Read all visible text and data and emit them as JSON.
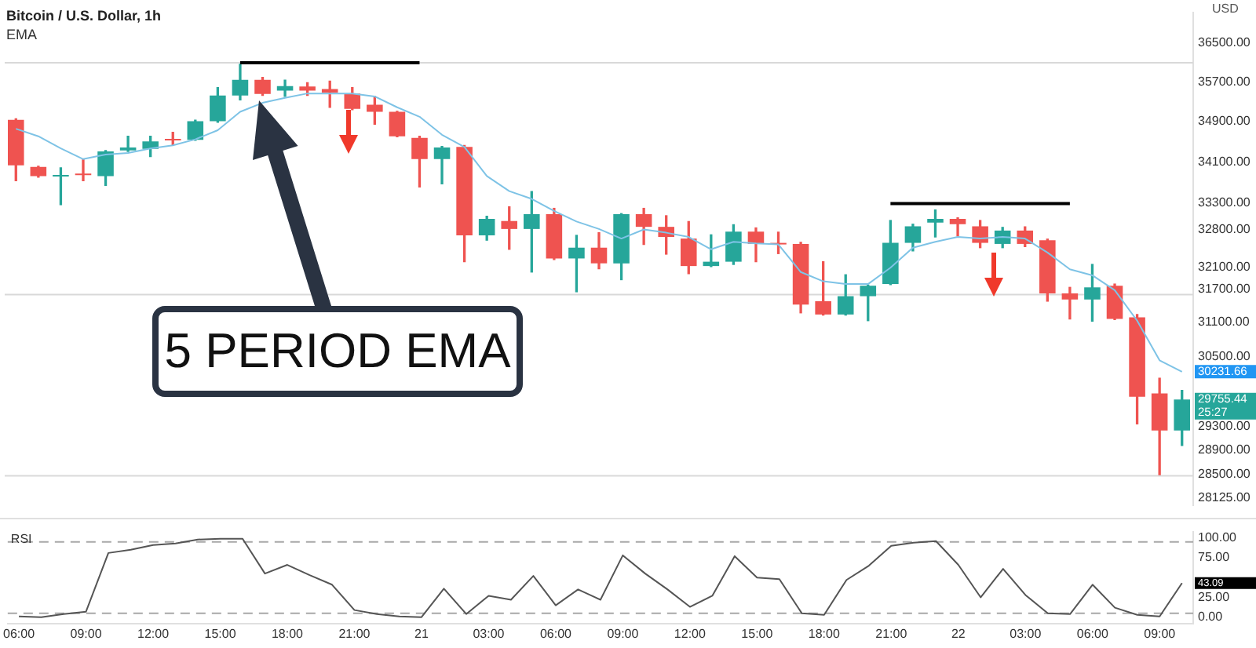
{
  "chart_data": [
    {
      "type": "candlestick",
      "title": "Bitcoin / U.S. Dollar, 1h",
      "log": true,
      "tick_labels": "y",
      "categories": [
        null,
        null,
        null,
        null,
        null,
        null,
        null,
        null,
        null,
        null,
        null,
        null,
        null,
        null,
        null,
        null,
        null,
        null,
        null,
        null,
        null,
        null,
        null,
        null,
        null,
        null,
        null,
        null,
        null,
        null,
        null,
        null,
        null,
        null,
        null,
        null,
        null,
        null,
        null,
        null,
        null,
        null,
        null,
        null,
        null,
        null,
        null,
        null,
        null,
        null,
        null,
        null,
        null
      ],
      "ohlc": [
        [
          34930,
          34950,
          33730,
          34030
        ],
        [
          34000,
          34010,
          33800,
          33820
        ],
        [
          33810,
          33980,
          33270,
          33830
        ],
        [
          33850,
          34150,
          33730,
          33840
        ],
        [
          33820,
          34320,
          33640,
          34300
        ],
        [
          34320,
          34600,
          34300,
          34380
        ],
        [
          34350,
          34600,
          34200,
          34500
        ],
        [
          34540,
          34680,
          34420,
          34520
        ],
        [
          34530,
          34920,
          34520,
          34900
        ],
        [
          34900,
          35580,
          34880,
          35420
        ],
        [
          35420,
          36060,
          35330,
          35740
        ],
        [
          35740,
          35790,
          35420,
          35450
        ],
        [
          35520,
          35730,
          35400,
          35610
        ],
        [
          35600,
          35680,
          35420,
          35520
        ],
        [
          35550,
          35710,
          35180,
          35480
        ],
        [
          35460,
          35580,
          35130,
          35150
        ],
        [
          35230,
          35400,
          34840,
          35090
        ],
        [
          35090,
          35100,
          34590,
          34600
        ],
        [
          34570,
          34600,
          33610,
          34150
        ],
        [
          34150,
          34400,
          33670,
          34380
        ],
        [
          34390,
          34420,
          32200,
          32690
        ],
        [
          32690,
          33050,
          32600,
          33000
        ],
        [
          32960,
          33230,
          32430,
          32810
        ],
        [
          32810,
          33520,
          32010,
          33090
        ],
        [
          33090,
          33200,
          32240,
          32260
        ],
        [
          32260,
          32690,
          31650,
          32460
        ],
        [
          32460,
          32740,
          32070,
          32170
        ],
        [
          32170,
          33100,
          31870,
          33090
        ],
        [
          33090,
          33200,
          32520,
          32850
        ],
        [
          32850,
          33060,
          32340,
          32660
        ],
        [
          32630,
          32950,
          31980,
          32120
        ],
        [
          32120,
          32700,
          32110,
          32200
        ],
        [
          32200,
          32890,
          32150,
          32760
        ],
        [
          32760,
          32830,
          32200,
          32530
        ],
        [
          32530,
          32750,
          32350,
          32520
        ],
        [
          32530,
          32560,
          31270,
          31420
        ],
        [
          31480,
          32200,
          31230,
          31240
        ],
        [
          31240,
          31960,
          31230,
          31570
        ],
        [
          31570,
          31770,
          31130,
          31760
        ],
        [
          31790,
          32970,
          31780,
          32550
        ],
        [
          32550,
          32900,
          32400,
          32860
        ],
        [
          32930,
          33170,
          32660,
          33000
        ],
        [
          33000,
          33020,
          32680,
          32900
        ],
        [
          32860,
          32970,
          32460,
          32550
        ],
        [
          32530,
          32840,
          32460,
          32780
        ],
        [
          32780,
          32850,
          32480,
          32530
        ],
        [
          32600,
          32620,
          31480,
          31620
        ],
        [
          31620,
          31730,
          31160,
          31510
        ],
        [
          31510,
          32150,
          31120,
          31730
        ],
        [
          31760,
          31790,
          31150,
          31160
        ],
        [
          31190,
          31240,
          29340,
          29800
        ],
        [
          29860,
          30120,
          28500,
          29230
        ],
        [
          29230,
          29910,
          28980,
          29755.44
        ]
      ],
      "colors": [
        "#ef5350",
        "#ef5350",
        "#26a69a",
        "#ef5350",
        "#26a69a",
        "#26a69a",
        "#26a69a",
        "#ef5350",
        "#26a69a",
        "#26a69a",
        "#26a69a",
        "#ef5350",
        "#26a69a",
        "#ef5350",
        "#ef5350",
        "#ef5350",
        "#ef5350",
        "#ef5350",
        "#ef5350",
        "#26a69a",
        "#ef5350",
        "#26a69a",
        "#ef5350",
        "#26a69a",
        "#ef5350",
        "#26a69a",
        "#ef5350",
        "#26a69a",
        "#ef5350",
        "#ef5350",
        "#ef5350",
        "#26a69a",
        "#26a69a",
        "#ef5350",
        "#ef5350",
        "#ef5350",
        "#ef5350",
        "#26a69a",
        "#26a69a",
        "#26a69a",
        "#26a69a",
        "#26a69a",
        "#ef5350",
        "#ef5350",
        "#26a69a",
        "#ef5350",
        "#ef5350",
        "#ef5350",
        "#26a69a",
        "#ef5350",
        "#ef5350",
        "#ef5350",
        "#26a69a"
      ],
      "series": [
        {
          "name": "EMA",
          "type": "line",
          "color": "#7ec3e6",
          "values": [
            34750,
            34600,
            34360,
            34150,
            34240,
            34270,
            34360,
            34420,
            34540,
            34720,
            35090,
            35270,
            35370,
            35460,
            35460,
            35460,
            35400,
            35180,
            34990,
            34630,
            34390,
            33820,
            33530,
            33380,
            33150,
            32950,
            32810,
            32630,
            32800,
            32740,
            32660,
            32430,
            32570,
            32540,
            32520,
            32010,
            31840,
            31790,
            31790,
            32090,
            32460,
            32570,
            32660,
            32630,
            32660,
            32630,
            32370,
            32060,
            31950,
            31680,
            31130,
            30430,
            30231.66
          ]
        },
        {
          "type": "line",
          "color": "#000000",
          "values": [
            null,
            null,
            null,
            null,
            null,
            null,
            null,
            null,
            null,
            null,
            36090,
            36090,
            36090,
            36090,
            36090,
            36090,
            36090,
            36090,
            36090,
            null,
            null,
            null,
            null,
            null,
            null,
            null,
            null,
            null,
            null,
            null,
            null,
            null,
            null,
            null,
            null,
            null,
            null,
            null,
            null,
            null,
            null,
            null,
            null,
            null,
            null,
            null,
            null,
            null,
            null,
            null,
            null,
            null,
            null
          ]
        },
        {
          "type": "line",
          "color": "#000000",
          "values": [
            null,
            null,
            null,
            null,
            null,
            null,
            null,
            null,
            null,
            null,
            null,
            null,
            null,
            null,
            null,
            null,
            null,
            null,
            null,
            null,
            null,
            null,
            null,
            null,
            null,
            null,
            null,
            null,
            null,
            null,
            null,
            null,
            null,
            null,
            null,
            null,
            null,
            null,
            null,
            33290,
            33290,
            33290,
            33290,
            33290,
            33290,
            33290,
            33290,
            33290,
            null,
            null,
            null,
            null,
            null
          ]
        }
      ],
      "ylim": [
        28000,
        37150
      ],
      "yticks": [
        {
          "value": 36500,
          "label": "36500.00"
        },
        {
          "value": 35700,
          "label": "35700.00"
        },
        {
          "value": 34900,
          "label": "34900.00"
        },
        {
          "value": 34100,
          "label": "34100.00"
        },
        {
          "value": 33300,
          "label": "33300.00"
        },
        {
          "value": 32800,
          "label": "32800.00"
        },
        {
          "value": 32100,
          "label": "32100.00"
        },
        {
          "value": 31700,
          "label": "31700.00"
        },
        {
          "value": 31100,
          "label": "31100.00"
        },
        {
          "value": 30500,
          "label": "30500.00"
        },
        {
          "value": 29300,
          "label": "29300.00"
        },
        {
          "value": 28900,
          "label": "28900.00"
        },
        {
          "value": 28500,
          "label": "28500.00"
        },
        {
          "value": 28125,
          "label": "28125.00"
        }
      ],
      "ref_lines": [
        {
          "axis": "y",
          "value": 36090,
          "color": "#d9d9d9"
        },
        {
          "axis": "y",
          "value": 31600,
          "color": "#d9d9d9"
        },
        {
          "axis": "y",
          "value": 28480,
          "color": "#d9d9d9"
        }
      ],
      "annotations": [
        "5 PERIOD EMA",
        "USD",
        "30231.66",
        "29755.44",
        "25:27"
      ]
    },
    {
      "type": "line",
      "categories": [
        "06:00",
        null,
        null,
        "09:00",
        null,
        null,
        "12:00",
        null,
        null,
        "15:00",
        null,
        null,
        "18:00",
        null,
        null,
        "21:00",
        null,
        null,
        "21",
        null,
        null,
        "03:00",
        null,
        null,
        "06:00",
        null,
        null,
        "09:00",
        null,
        null,
        "12:00",
        null,
        null,
        "15:00",
        null,
        null,
        "18:00",
        null,
        null,
        "21:00",
        null,
        null,
        "22",
        null,
        null,
        "03:00",
        null,
        null,
        "06:00",
        null,
        null,
        "09:00",
        null
      ],
      "series": [
        {
          "name": "RSI",
          "color": "#555555",
          "values": [
            1,
            0,
            4,
            7,
            81,
            85,
            91,
            93,
            98,
            99,
            99,
            55,
            66,
            53,
            41,
            9,
            4,
            1,
            0,
            36,
            4,
            27,
            22,
            52,
            15,
            35,
            22,
            78,
            55,
            35,
            13,
            27,
            77,
            50,
            48,
            5,
            3,
            47,
            65,
            90,
            94,
            96,
            66,
            25,
            61,
            28,
            5,
            4,
            41,
            12,
            3,
            1,
            43
          ]
        }
      ],
      "ylim": [
        -8,
        108
      ],
      "yticks": [
        {
          "value": 100,
          "label": "100.00"
        },
        {
          "value": 75,
          "label": "75.00"
        },
        {
          "value": 25,
          "label": "25.00"
        },
        {
          "value": 0,
          "label": "0.00"
        }
      ],
      "ref_lines": [
        {
          "axis": "y",
          "value": 95,
          "color": "#a8a8a8",
          "line_style": "dashed"
        },
        {
          "axis": "y",
          "value": 5,
          "color": "#a8a8a8",
          "line_style": "dashed"
        }
      ],
      "annotations": [
        "43.09"
      ]
    }
  ]
}
